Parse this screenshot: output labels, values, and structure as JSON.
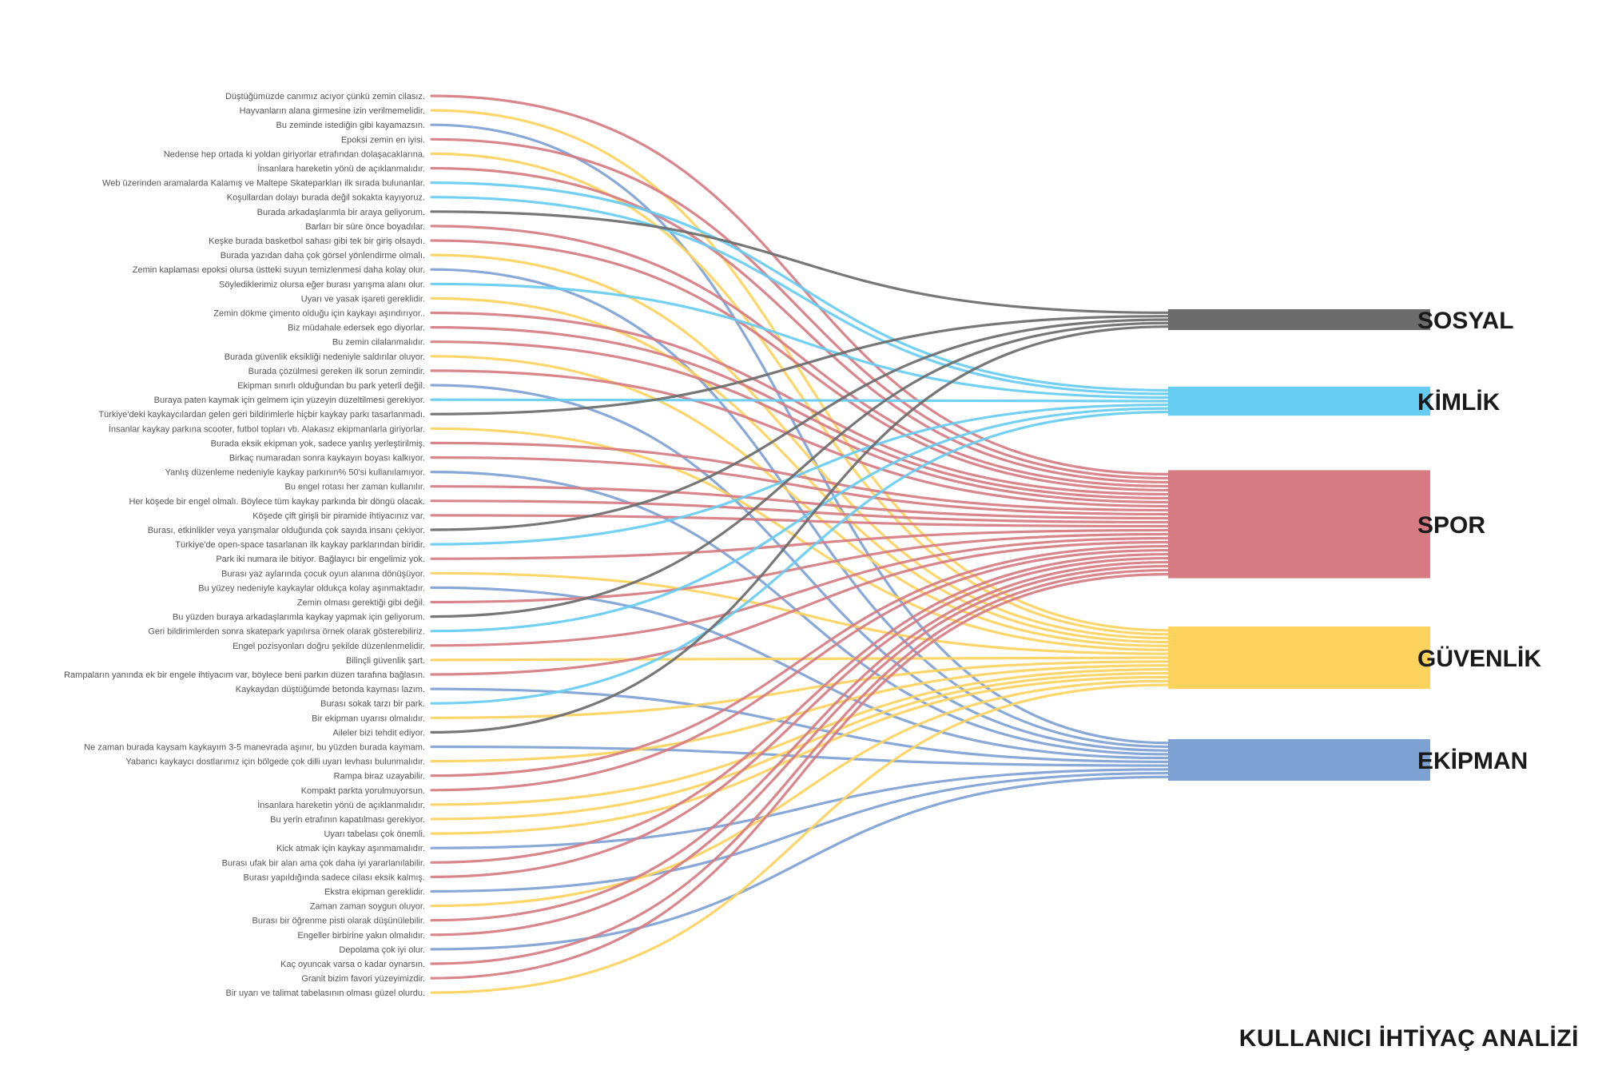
{
  "title": "KULLANICI İHTİYAÇ ANALİZİ",
  "categories": [
    {
      "name": "SOSYAL",
      "color": "#6b6b6b"
    },
    {
      "name": "KİMLİK",
      "color": "#66ccf2"
    },
    {
      "name": "SPOR",
      "color": "#d67b82"
    },
    {
      "name": "GÜVENLİK",
      "color": "#fdd35e"
    },
    {
      "name": "EKİPMAN",
      "color": "#7ea1d4"
    }
  ],
  "quotes": [
    {
      "text": "Düştüğümüzde canımız acıyor çünkü zemin cilasız.",
      "cat": "SPOR"
    },
    {
      "text": "Hayvanların alana girmesine izin verilmemelidir.",
      "cat": "GÜVENLİK"
    },
    {
      "text": "Bu zeminde istediğin gibi kayamazsın.",
      "cat": "EKİPMAN"
    },
    {
      "text": "Epoksi zemin en iyisi.",
      "cat": "SPOR"
    },
    {
      "text": "Nedense hep ortada ki yoldan giriyorlar etrafından dolaşacaklarına.",
      "cat": "GÜVENLİK"
    },
    {
      "text": "İnsanlara hareketin yönü de açıklanmalıdır.",
      "cat": "SPOR"
    },
    {
      "text": "Web üzerinden aramalarda Kalamış ve Maltepe Skateparkları ilk sırada bulunanlar.",
      "cat": "KİMLİK"
    },
    {
      "text": "Koşullardan dolayı burada değil sokakta kayıyoruz.",
      "cat": "KİMLİK"
    },
    {
      "text": "Burada arkadaşlarımla bir araya geliyorum.",
      "cat": "SOSYAL"
    },
    {
      "text": "Barları bir süre önce boyadılar.",
      "cat": "SPOR"
    },
    {
      "text": "Keşke burada basketbol sahası gibi tek bir giriş olsaydı.",
      "cat": "SPOR"
    },
    {
      "text": "Burada yazıdan daha çok görsel yönlendirme olmalı.",
      "cat": "GÜVENLİK"
    },
    {
      "text": "Zemin kaplaması epoksi olursa üstteki suyun temizlenmesi daha kolay olur.",
      "cat": "EKİPMAN"
    },
    {
      "text": "Söylediklerimiz olursa eğer burası yarışma alanı olur.",
      "cat": "KİMLİK"
    },
    {
      "text": "Uyarı ve yasak işareti gereklidir.",
      "cat": "GÜVENLİK"
    },
    {
      "text": "Zemin dökme çimento olduğu için kaykayı aşındırıyor..",
      "cat": "SPOR"
    },
    {
      "text": "Biz müdahale edersek ego diyorlar.",
      "cat": "SPOR"
    },
    {
      "text": "Bu zemin cilalanmalıdır.",
      "cat": "SPOR"
    },
    {
      "text": "Burada güvenlik eksikliği nedeniyle saldırılar oluyor.",
      "cat": "GÜVENLİK"
    },
    {
      "text": "Burada çözülmesi gereken ilk sorun zemindir.",
      "cat": "SPOR"
    },
    {
      "text": "Ekipman sınırlı olduğundan bu park yeterli değil.",
      "cat": "EKİPMAN"
    },
    {
      "text": "Buraya paten kaymak için gelmem için yüzeyin düzeltilmesi gerekiyor.",
      "cat": "KİMLİK"
    },
    {
      "text": "Türkiye'deki kaykaycılardan gelen geri bildirimlerle hiçbir kaykay parkı tasarlanmadı.",
      "cat": "SOSYAL"
    },
    {
      "text": "İnsanlar kaykay parkına scooter, futbol topları vb. Alakasız ekipmanlarla giriyorlar.",
      "cat": "GÜVENLİK"
    },
    {
      "text": "Burada eksik ekipman yok, sadece yanlış yerleştirilmiş.",
      "cat": "SPOR"
    },
    {
      "text": "Birkaç numaradan sonra kaykayın boyası kalkıyor.",
      "cat": "SPOR"
    },
    {
      "text": "Yanlış düzenleme nedeniyle kaykay parkının% 50'si kullanılamıyor.",
      "cat": "EKİPMAN"
    },
    {
      "text": "Bu engel rotası her zaman kullanılır.",
      "cat": "SPOR"
    },
    {
      "text": "Her köşede bir engel olmalı. Böylece tüm kaykay parkında bir döngü olacak.",
      "cat": "SPOR"
    },
    {
      "text": "Köşede çift girişli bir piramide ihtiyacınız var.",
      "cat": "SPOR"
    },
    {
      "text": "Burası, etkinlikler veya yarışmalar olduğunda çok sayıda insanı çekiyor.",
      "cat": "SOSYAL"
    },
    {
      "text": "Türkiye'de open-space tasarlanan ilk kaykay parklarından biridir.",
      "cat": "KİMLİK"
    },
    {
      "text": "Park iki numara ile bitiyor. Bağlayıcı bir engelimiz yok.",
      "cat": "SPOR"
    },
    {
      "text": "Burası yaz aylarında çocuk oyun alanına dönüşüyor.",
      "cat": "GÜVENLİK"
    },
    {
      "text": "Bu yüzey nedeniyle kaykaylar oldukça kolay aşınmaktadır.",
      "cat": "EKİPMAN"
    },
    {
      "text": "Zemin olması gerektiği gibi değil.",
      "cat": "SPOR"
    },
    {
      "text": "Bu yüzden buraya arkadaşlarımla kaykay yapmak için geliyorum.",
      "cat": "SOSYAL"
    },
    {
      "text": "Geri bildirimlerden sonra skatepark yapılırsa örnek olarak gösterebiliriz.",
      "cat": "KİMLİK"
    },
    {
      "text": "Engel pozisyonları doğru şekilde düzenlenmelidir.",
      "cat": "SPOR"
    },
    {
      "text": "Bilinçli güvenlik şart.",
      "cat": "GÜVENLİK"
    },
    {
      "text": "Rampaların yanında ek bir engele ihtiyacım var, böylece beni parkın düzen tarafına bağlasın.",
      "cat": "SPOR"
    },
    {
      "text": "Kaykaydan düştüğümde betonda kayması lazım.",
      "cat": "EKİPMAN"
    },
    {
      "text": "Burası sokak tarzı bir park.",
      "cat": "KİMLİK"
    },
    {
      "text": "Bir ekipman uyarısı olmalıdır.",
      "cat": "GÜVENLİK"
    },
    {
      "text": "Aileler bizi tehdit ediyor.",
      "cat": "SOSYAL"
    },
    {
      "text": "Ne zaman burada kaysam kaykayım 3-5 manevrada aşınır, bu yüzden burada kaymam.",
      "cat": "EKİPMAN"
    },
    {
      "text": "Yabancı kaykaycı dostlarımız için bölgede çok dilli uyarı levhası bulunmalıdır.",
      "cat": "GÜVENLİK"
    },
    {
      "text": "Rampa biraz uzayabilir.",
      "cat": "SPOR"
    },
    {
      "text": "Kompakt parkta yorulmuyorsun.",
      "cat": "SPOR"
    },
    {
      "text": "İnsanlara hareketin yönü de açıklanmalıdır.",
      "cat": "GÜVENLİK"
    },
    {
      "text": "Bu yerin etrafının kapatılması gerekiyor.",
      "cat": "GÜVENLİK"
    },
    {
      "text": "Uyarı tabelası çok önemli.",
      "cat": "GÜVENLİK"
    },
    {
      "text": "Kick atmak için kaykay aşınmamalıdır.",
      "cat": "EKİPMAN"
    },
    {
      "text": "Burası ufak bir alan ama çok daha iyi yararlanılabilir.",
      "cat": "SPOR"
    },
    {
      "text": "Burası yapıldığında sadece cilası eksik kalmış.",
      "cat": "SPOR"
    },
    {
      "text": "Ekstra ekipman gereklidir.",
      "cat": "EKİPMAN"
    },
    {
      "text": "Zaman zaman soygun oluyor.",
      "cat": "GÜVENLİK"
    },
    {
      "text": "Burası bir öğrenme pisti olarak düşünülebilir.",
      "cat": "SPOR"
    },
    {
      "text": "Engeller birbirine yakın olmalıdır.",
      "cat": "SPOR"
    },
    {
      "text": "Depolama çok iyi olur.",
      "cat": "EKİPMAN"
    },
    {
      "text": "Kaç oyuncak varsa o kadar oynarsın.",
      "cat": "SPOR"
    },
    {
      "text": "Granit bizim favori yüzeyimizdir.",
      "cat": "SPOR"
    },
    {
      "text": "Bir uyarı ve talimat tabelasının olması güzel olurdu.",
      "cat": "GÜVENLİK"
    }
  ]
}
